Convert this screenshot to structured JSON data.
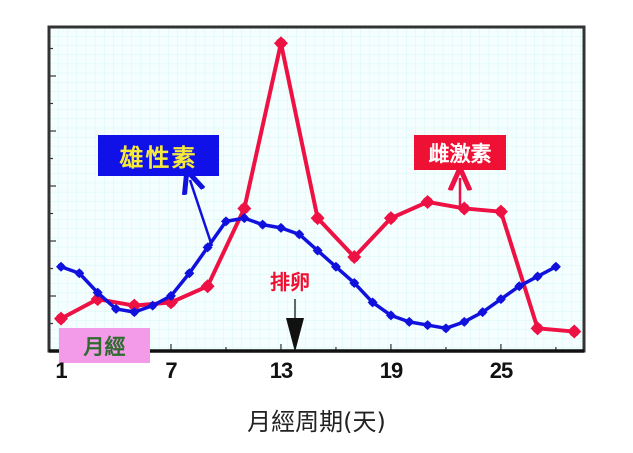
{
  "chart_data": {
    "type": "line",
    "title": "",
    "xlabel": "月經周期(天)",
    "ylabel": "",
    "x_ticks": [
      1,
      7,
      13,
      19,
      25
    ],
    "xlim": [
      1,
      29
    ],
    "ylim": [
      0,
      100
    ],
    "grid": true,
    "legend_position": "inline labels",
    "series": [
      {
        "name": "雌激素",
        "color": "#ee1144",
        "x": [
          1,
          3,
          5,
          7,
          9,
          11,
          13,
          15,
          17,
          19,
          21,
          23,
          25,
          27,
          29
        ],
        "values": [
          10,
          16,
          14,
          15,
          20,
          44,
          95,
          41,
          29,
          41,
          46,
          44,
          43,
          7,
          6
        ]
      },
      {
        "name": "雄性素",
        "color": "#1111dd",
        "x": [
          1,
          2,
          3,
          4,
          5,
          6,
          7,
          8,
          9,
          10,
          11,
          12,
          13,
          14,
          15,
          16,
          17,
          18,
          19,
          20,
          21,
          22,
          23,
          24,
          25,
          26,
          27,
          28
        ],
        "values": [
          26,
          24,
          18,
          13,
          12,
          14,
          17,
          24,
          32,
          40,
          41,
          39,
          38,
          36,
          31,
          26,
          21,
          15,
          11,
          9,
          8,
          7,
          9,
          12,
          16,
          20,
          23,
          26
        ]
      }
    ],
    "annotations": [
      {
        "text": "雄性素",
        "type": "label-box",
        "points_to_day": 9
      },
      {
        "text": "雌激素",
        "type": "label-box",
        "points_to_day": 23
      },
      {
        "text": "排卵",
        "type": "arrow-label",
        "day": 14
      },
      {
        "text": "月經",
        "type": "label-box",
        "span_days": [
          1,
          5
        ]
      }
    ]
  },
  "labels": {
    "androgen": "雄性素",
    "estrogen": "雌激素",
    "ovulation": "排卵",
    "menses": "月經",
    "x_axis_title": "月經周期(天)",
    "ticks": [
      "1",
      "7",
      "13",
      "19",
      "25"
    ]
  },
  "colors": {
    "estrogen": "#ee1144",
    "androgen": "#1111dd",
    "plot_bg": "#f4fefe",
    "grid": "#d6f6f6",
    "menses_box": "#f39be8",
    "androgen_box": "#1010e8",
    "estrogen_box": "#ee1133"
  }
}
